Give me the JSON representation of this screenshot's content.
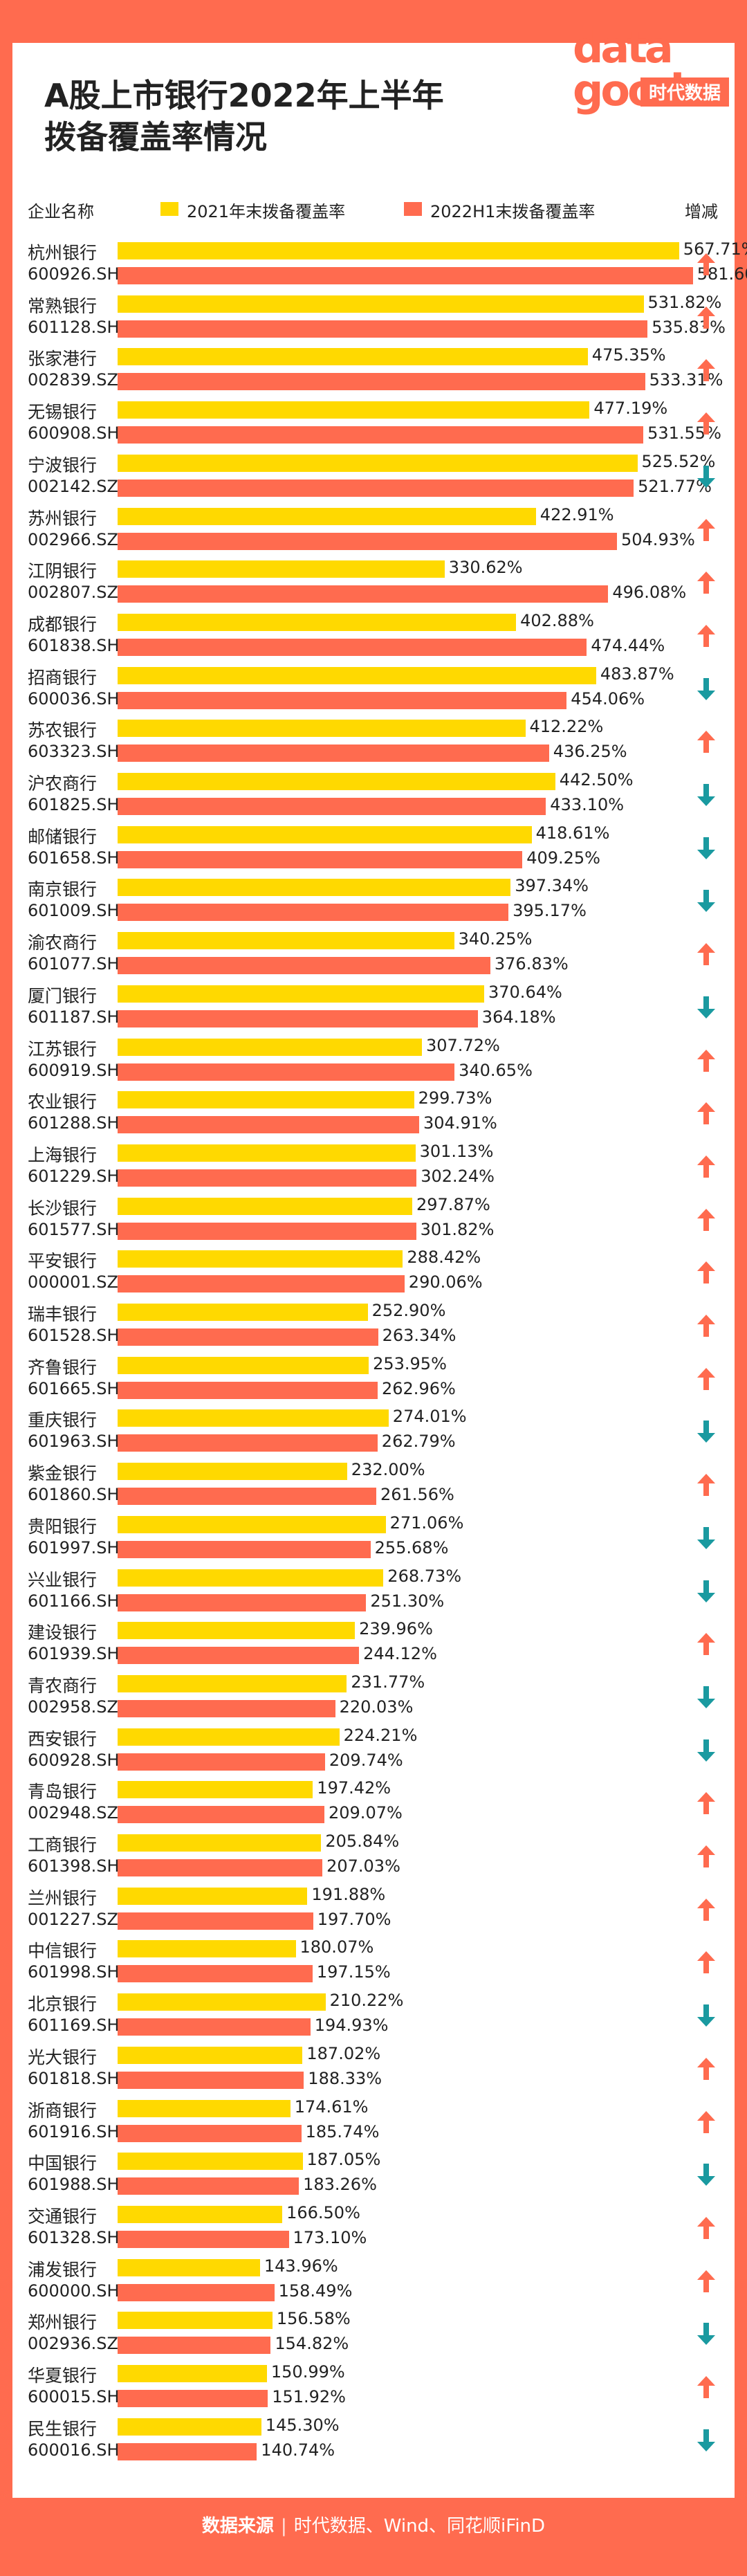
{
  "title_line1": "A股上市银行2022年上半年",
  "title_line2": "拨备覆盖率情况",
  "logo": {
    "text1": "data",
    "text2": "good",
    "text3": "时代数据"
  },
  "colors": {
    "y2021": "#ffd900",
    "h2022": "#ff6b4f",
    "up": "#ff6b4f",
    "down": "#1a9aa0"
  },
  "header": {
    "company": "企业名称",
    "change": "增减"
  },
  "footer": {
    "label": "数据来源",
    "sep": "|",
    "text": "时代数据、Wind、同花顺iFinD"
  },
  "chart_data": {
    "type": "bar",
    "series": [
      {
        "name": "2021年末拨备覆盖率",
        "key": "y2021"
      },
      {
        "name": "2022H1末拨备覆盖率",
        "key": "h2022"
      }
    ],
    "rows": [
      {
        "name": "杭州银行",
        "code": "600926.SH",
        "y2021": 567.71,
        "h2022": 581.6,
        "dir": "up"
      },
      {
        "name": "常熟银行",
        "code": "601128.SH",
        "y2021": 531.82,
        "h2022": 535.83,
        "dir": "up"
      },
      {
        "name": "张家港行",
        "code": "002839.SZ",
        "y2021": 475.35,
        "h2022": 533.31,
        "dir": "up"
      },
      {
        "name": "无锡银行",
        "code": "600908.SH",
        "y2021": 477.19,
        "h2022": 531.55,
        "dir": "up"
      },
      {
        "name": "宁波银行",
        "code": "002142.SZ",
        "y2021": 525.52,
        "h2022": 521.77,
        "dir": "down"
      },
      {
        "name": "苏州银行",
        "code": "002966.SZ",
        "y2021": 422.91,
        "h2022": 504.93,
        "dir": "up"
      },
      {
        "name": "江阴银行",
        "code": "002807.SZ",
        "y2021": 330.62,
        "h2022": 496.08,
        "dir": "up"
      },
      {
        "name": "成都银行",
        "code": "601838.SH",
        "y2021": 402.88,
        "h2022": 474.44,
        "dir": "up"
      },
      {
        "name": "招商银行",
        "code": "600036.SH",
        "y2021": 483.87,
        "h2022": 454.06,
        "dir": "down"
      },
      {
        "name": "苏农银行",
        "code": "603323.SH",
        "y2021": 412.22,
        "h2022": 436.25,
        "dir": "up"
      },
      {
        "name": "沪农商行",
        "code": "601825.SH",
        "y2021": 442.5,
        "h2022": 433.1,
        "dir": "down"
      },
      {
        "name": "邮储银行",
        "code": "601658.SH",
        "y2021": 418.61,
        "h2022": 409.25,
        "dir": "down"
      },
      {
        "name": "南京银行",
        "code": "601009.SH",
        "y2021": 397.34,
        "h2022": 395.17,
        "dir": "down"
      },
      {
        "name": "渝农商行",
        "code": "601077.SH",
        "y2021": 340.25,
        "h2022": 376.83,
        "dir": "up"
      },
      {
        "name": "厦门银行",
        "code": "601187.SH",
        "y2021": 370.64,
        "h2022": 364.18,
        "dir": "down"
      },
      {
        "name": "江苏银行",
        "code": "600919.SH",
        "y2021": 307.72,
        "h2022": 340.65,
        "dir": "up"
      },
      {
        "name": "农业银行",
        "code": "601288.SH",
        "y2021": 299.73,
        "h2022": 304.91,
        "dir": "up"
      },
      {
        "name": "上海银行",
        "code": "601229.SH",
        "y2021": 301.13,
        "h2022": 302.24,
        "dir": "up"
      },
      {
        "name": "长沙银行",
        "code": "601577.SH",
        "y2021": 297.87,
        "h2022": 301.82,
        "dir": "up"
      },
      {
        "name": "平安银行",
        "code": "000001.SZ",
        "y2021": 288.42,
        "h2022": 290.06,
        "dir": "up"
      },
      {
        "name": "瑞丰银行",
        "code": "601528.SH",
        "y2021": 252.9,
        "h2022": 263.34,
        "dir": "up"
      },
      {
        "name": "齐鲁银行",
        "code": "601665.SH",
        "y2021": 253.95,
        "h2022": 262.96,
        "dir": "up"
      },
      {
        "name": "重庆银行",
        "code": "601963.SH",
        "y2021": 274.01,
        "h2022": 262.79,
        "dir": "down"
      },
      {
        "name": "紫金银行",
        "code": "601860.SH",
        "y2021": 232.0,
        "h2022": 261.56,
        "dir": "up"
      },
      {
        "name": "贵阳银行",
        "code": "601997.SH",
        "y2021": 271.06,
        "h2022": 255.68,
        "dir": "down"
      },
      {
        "name": "兴业银行",
        "code": "601166.SH",
        "y2021": 268.73,
        "h2022": 251.3,
        "dir": "down"
      },
      {
        "name": "建设银行",
        "code": "601939.SH",
        "y2021": 239.96,
        "h2022": 244.12,
        "dir": "up"
      },
      {
        "name": "青农商行",
        "code": "002958.SZ",
        "y2021": 231.77,
        "h2022": 220.03,
        "dir": "down"
      },
      {
        "name": "西安银行",
        "code": "600928.SH",
        "y2021": 224.21,
        "h2022": 209.74,
        "dir": "down"
      },
      {
        "name": "青岛银行",
        "code": "002948.SZ",
        "y2021": 197.42,
        "h2022": 209.07,
        "dir": "up"
      },
      {
        "name": "工商银行",
        "code": "601398.SH",
        "y2021": 205.84,
        "h2022": 207.03,
        "dir": "up"
      },
      {
        "name": "兰州银行",
        "code": "001227.SZ",
        "y2021": 191.88,
        "h2022": 197.7,
        "dir": "up"
      },
      {
        "name": "中信银行",
        "code": "601998.SH",
        "y2021": 180.07,
        "h2022": 197.15,
        "dir": "up"
      },
      {
        "name": "北京银行",
        "code": "601169.SH",
        "y2021": 210.22,
        "h2022": 194.93,
        "dir": "down"
      },
      {
        "name": "光大银行",
        "code": "601818.SH",
        "y2021": 187.02,
        "h2022": 188.33,
        "dir": "up"
      },
      {
        "name": "浙商银行",
        "code": "601916.SH",
        "y2021": 174.61,
        "h2022": 185.74,
        "dir": "up"
      },
      {
        "name": "中国银行",
        "code": "601988.SH",
        "y2021": 187.05,
        "h2022": 183.26,
        "dir": "down"
      },
      {
        "name": "交通银行",
        "code": "601328.SH",
        "y2021": 166.5,
        "h2022": 173.1,
        "dir": "up"
      },
      {
        "name": "浦发银行",
        "code": "600000.SH",
        "y2021": 143.96,
        "h2022": 158.49,
        "dir": "up"
      },
      {
        "name": "郑州银行",
        "code": "002936.SZ",
        "y2021": 156.58,
        "h2022": 154.82,
        "dir": "down"
      },
      {
        "name": "华夏银行",
        "code": "600015.SH",
        "y2021": 150.99,
        "h2022": 151.92,
        "dir": "up"
      },
      {
        "name": "民生银行",
        "code": "600016.SH",
        "y2021": 145.3,
        "h2022": 140.74,
        "dir": "down"
      }
    ]
  }
}
